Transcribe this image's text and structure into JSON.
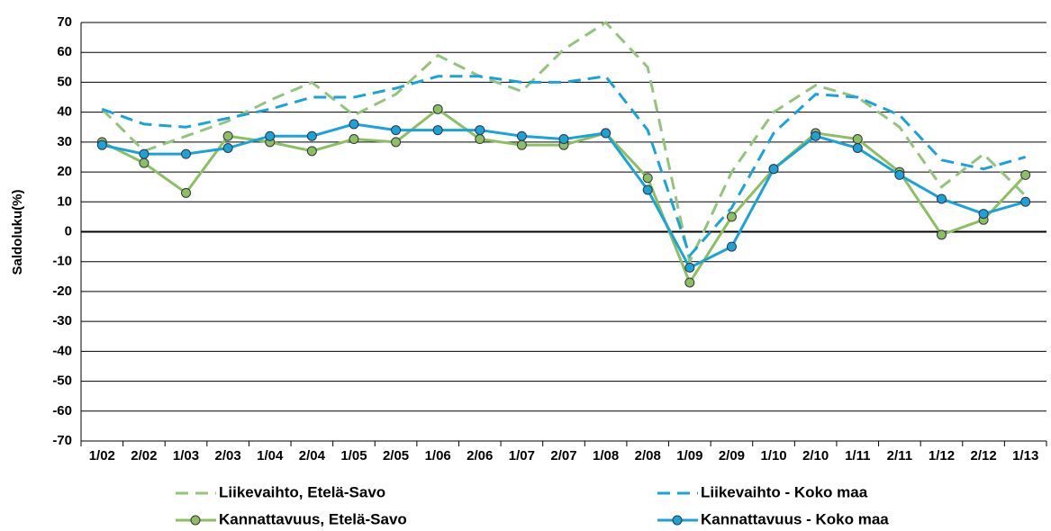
{
  "chart_data": {
    "type": "line",
    "y_label": "Saldoluku(%)",
    "categories": [
      "1/02",
      "2/02",
      "1/03",
      "2/03",
      "1/04",
      "2/04",
      "1/05",
      "2/05",
      "1/06",
      "2/06",
      "1/07",
      "2/07",
      "1/08",
      "2/08",
      "1/09",
      "2/09",
      "1/10",
      "2/10",
      "1/11",
      "2/11",
      "1/12",
      "2/12",
      "1/13"
    ],
    "series": [
      {
        "name": "Liikevaihto, Etelä-Savo",
        "color": "#93c47d",
        "dashed": true,
        "markers": false,
        "values": [
          41,
          27,
          32,
          37,
          44,
          50,
          39,
          46,
          59,
          52,
          47,
          61,
          70,
          55,
          -10,
          20,
          40,
          49,
          45,
          35,
          15,
          26,
          12
        ]
      },
      {
        "name": "Liikevaihto - Koko maa",
        "color": "#1aa3d9",
        "dashed": true,
        "markers": false,
        "values": [
          41,
          36,
          35,
          38,
          41,
          45,
          45,
          48,
          52,
          52,
          50,
          50,
          52,
          34,
          -8,
          8,
          33,
          46,
          45,
          39,
          24,
          21,
          25
        ]
      },
      {
        "name": "Kannattavuus, Etelä-Savo",
        "color": "#8cbf5f",
        "dashed": false,
        "markers": true,
        "values": [
          30,
          23,
          13,
          32,
          30,
          27,
          31,
          30,
          41,
          31,
          29,
          29,
          33,
          18,
          -17,
          5,
          21,
          33,
          31,
          20,
          -1,
          4,
          19
        ]
      },
      {
        "name": "Kannattavuus - Koko maa",
        "color": "#1aa3d9",
        "dashed": false,
        "markers": true,
        "values": [
          29,
          26,
          26,
          28,
          32,
          32,
          36,
          34,
          34,
          34,
          32,
          31,
          33,
          14,
          -12,
          -5,
          21,
          32,
          28,
          19,
          11,
          6,
          10
        ]
      }
    ],
    "ylim": [
      -70,
      70
    ],
    "yticks": [
      -70,
      -60,
      -50,
      -40,
      -30,
      -20,
      -10,
      0,
      10,
      20,
      30,
      40,
      50,
      60,
      70
    ],
    "grid": true
  }
}
